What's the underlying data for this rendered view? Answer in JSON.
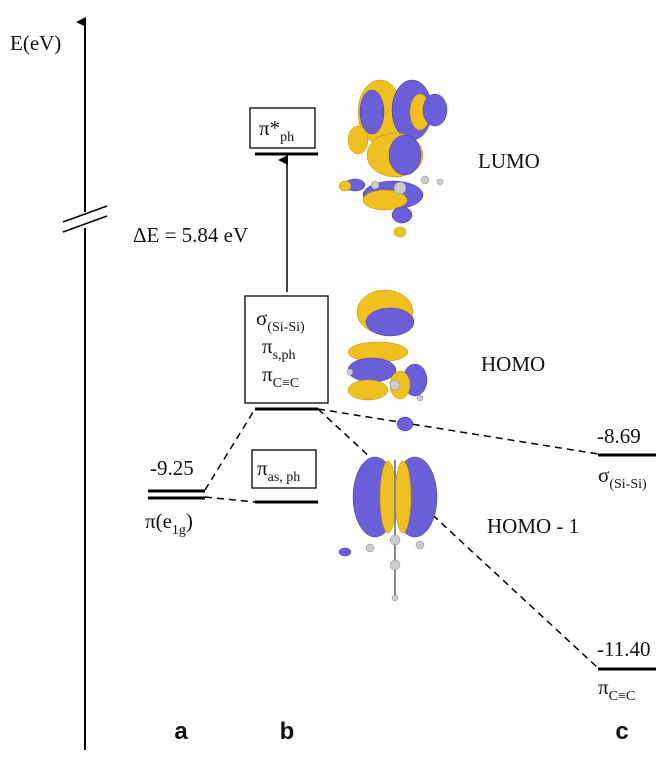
{
  "axis_label": "E(eV)",
  "delta_e": "ΔE = 5.84 eV",
  "column_b": {
    "lumo_box": {
      "base": "π*",
      "sub": "ph"
    },
    "homo_box": [
      {
        "base": "σ",
        "sub": "(Si-Si)"
      },
      {
        "base": "π",
        "sub": "s,ph"
      },
      {
        "base": "π",
        "sub": "C≡C"
      }
    ],
    "homo1_box": {
      "base": "π",
      "sub": "as, ph"
    }
  },
  "orbitals": [
    "LUMO",
    "HOMO",
    "HOMO - 1"
  ],
  "column_a": {
    "energy": "-9.25",
    "label": {
      "base": "π(e",
      "sub": "1g",
      "tail": ")"
    }
  },
  "column_c": [
    {
      "energy": "-8.69",
      "label": {
        "base": "σ",
        "sub": "(Si-Si)"
      }
    },
    {
      "energy": "-11.40",
      "label": {
        "base": "π",
        "sub": "C≡C"
      }
    }
  ],
  "columns": [
    "a",
    "b",
    "c"
  ]
}
